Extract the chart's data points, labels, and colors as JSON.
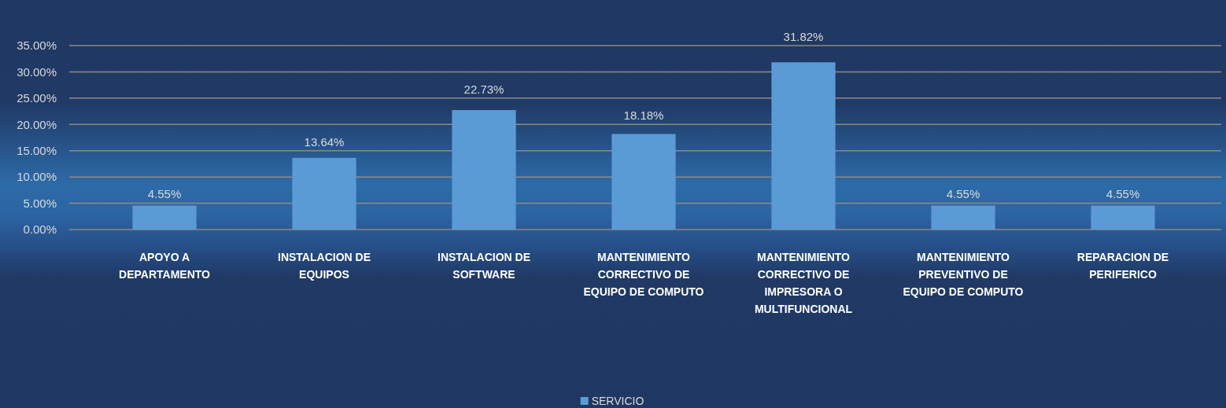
{
  "chart_data": {
    "type": "bar",
    "categories": [
      "APOYO A DEPARTAMENTO",
      "INSTALACION DE EQUIPOS",
      "INSTALACION DE SOFTWARE",
      "MANTENIMIENTO CORRECTIVO DE EQUIPO DE COMPUTO",
      "MANTENIMIENTO CORRECTIVO DE IMPRESORA O MULTIFUNCIONAL",
      "MANTENIMIENTO PREVENTIVO DE EQUIPO DE COMPUTO",
      "REPARACION DE PERIFERICO"
    ],
    "series": [
      {
        "name": "SERVICIO",
        "color": "#5b9bd5",
        "values": [
          4.55,
          13.64,
          22.73,
          18.18,
          31.82,
          4.55,
          4.55
        ],
        "value_labels": [
          "4.55%",
          "13.64%",
          "22.73%",
          "18.18%",
          "31.82%",
          "4.55%",
          "4.55%"
        ]
      }
    ],
    "ylim": [
      0,
      35
    ],
    "yticks": [
      {
        "value": 0,
        "label": "0.00%"
      },
      {
        "value": 5,
        "label": "5.00%"
      },
      {
        "value": 10,
        "label": "10.00%"
      },
      {
        "value": 15,
        "label": "15.00%"
      },
      {
        "value": 20,
        "label": "20.00%"
      },
      {
        "value": 25,
        "label": "25.00%"
      },
      {
        "value": 30,
        "label": "30.00%"
      },
      {
        "value": 35,
        "label": "35.00%"
      }
    ],
    "grid": "y",
    "legend": "bottom"
  }
}
